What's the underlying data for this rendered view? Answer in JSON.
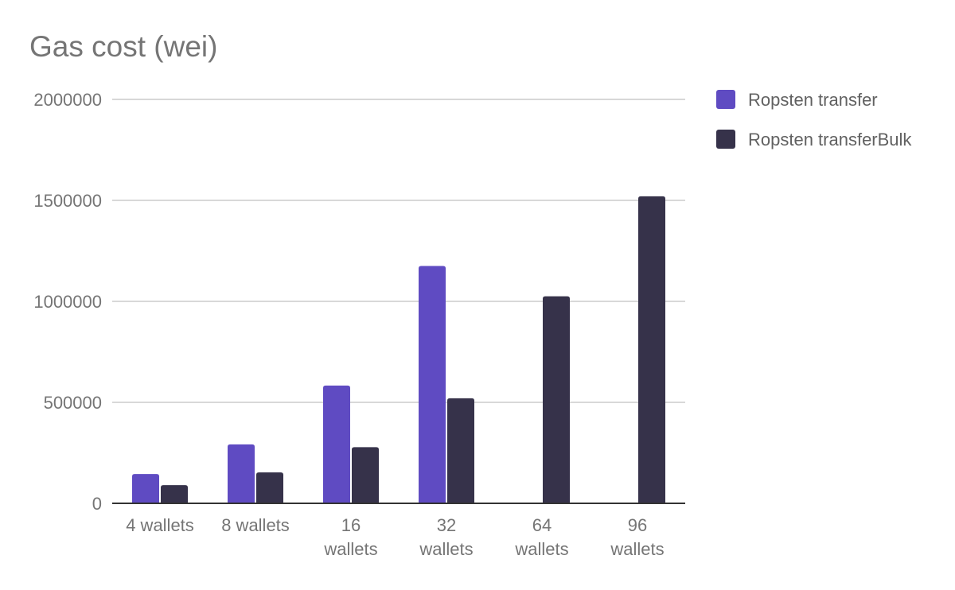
{
  "chart_data": {
    "type": "bar",
    "title": "Gas cost (wei)",
    "xlabel": "",
    "ylabel": "",
    "categories": [
      [
        "4 wallets"
      ],
      [
        "8 wallets"
      ],
      [
        "16",
        "wallets"
      ],
      [
        "32",
        "wallets"
      ],
      [
        "64",
        "wallets"
      ],
      [
        "96",
        "wallets"
      ]
    ],
    "series": [
      {
        "name": "Ropsten transfer",
        "color": "#5f4bc2",
        "values": [
          145000,
          292000,
          583000,
          1175000,
          null,
          null
        ]
      },
      {
        "name": "Ropsten transferBulk",
        "color": "#36324a",
        "values": [
          90000,
          153000,
          278000,
          520000,
          1025000,
          1520000
        ]
      }
    ],
    "ylim": [
      0,
      2000000
    ],
    "yticks": [
      0,
      500000,
      1000000,
      1500000,
      2000000
    ],
    "grid": true,
    "legend": "right"
  }
}
